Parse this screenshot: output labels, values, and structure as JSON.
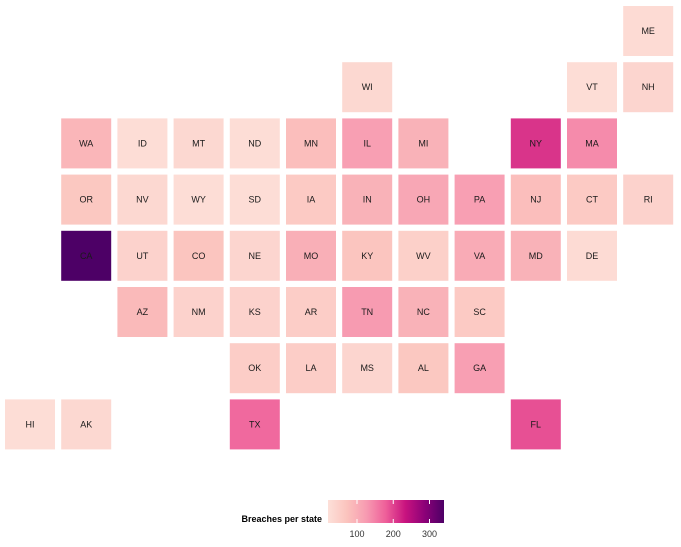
{
  "chart_data": {
    "type": "heatmap",
    "subtype": "state-tile-grid-map",
    "legend": {
      "title": "Breaches per state",
      "ticks": [
        100,
        200,
        300
      ],
      "range": [
        20,
        340
      ],
      "placement": "bottom",
      "colors": [
        "#fde0d9",
        "#fbc3bd",
        "#f79ab1",
        "#ee5e99",
        "#c8137f",
        "#8c0178",
        "#4d0066"
      ]
    },
    "tiles": [
      {
        "state": "ME",
        "value": 30
      },
      {
        "state": "WI",
        "value": 35
      },
      {
        "state": "VT",
        "value": 25
      },
      {
        "state": "NH",
        "value": 40
      },
      {
        "state": "WA",
        "value": 90
      },
      {
        "state": "ID",
        "value": 25
      },
      {
        "state": "MT",
        "value": 35
      },
      {
        "state": "ND",
        "value": 25
      },
      {
        "state": "MN",
        "value": 80
      },
      {
        "state": "IL",
        "value": 120
      },
      {
        "state": "MI",
        "value": 95
      },
      {
        "state": "NY",
        "value": 210
      },
      {
        "state": "MA",
        "value": 140
      },
      {
        "state": "OR",
        "value": 65
      },
      {
        "state": "NV",
        "value": 35
      },
      {
        "state": "WY",
        "value": 25
      },
      {
        "state": "SD",
        "value": 25
      },
      {
        "state": "IA",
        "value": 60
      },
      {
        "state": "IN",
        "value": 95
      },
      {
        "state": "OH",
        "value": 110
      },
      {
        "state": "PA",
        "value": 120
      },
      {
        "state": "NJ",
        "value": 80
      },
      {
        "state": "CT",
        "value": 60
      },
      {
        "state": "RI",
        "value": 45
      },
      {
        "state": "CA",
        "value": 340
      },
      {
        "state": "UT",
        "value": 45
      },
      {
        "state": "CO",
        "value": 70
      },
      {
        "state": "NE",
        "value": 40
      },
      {
        "state": "MO",
        "value": 100
      },
      {
        "state": "KY",
        "value": 70
      },
      {
        "state": "WV",
        "value": 50
      },
      {
        "state": "VA",
        "value": 105
      },
      {
        "state": "MD",
        "value": 95
      },
      {
        "state": "DE",
        "value": 30
      },
      {
        "state": "AZ",
        "value": 85
      },
      {
        "state": "NM",
        "value": 45
      },
      {
        "state": "KS",
        "value": 45
      },
      {
        "state": "AR",
        "value": 55
      },
      {
        "state": "TN",
        "value": 125
      },
      {
        "state": "NC",
        "value": 95
      },
      {
        "state": "SC",
        "value": 60
      },
      {
        "state": "OK",
        "value": 55
      },
      {
        "state": "LA",
        "value": 55
      },
      {
        "state": "MS",
        "value": 40
      },
      {
        "state": "AL",
        "value": 65
      },
      {
        "state": "GA",
        "value": 120
      },
      {
        "state": "HI",
        "value": 25
      },
      {
        "state": "AK",
        "value": 35
      },
      {
        "state": "TX",
        "value": 170
      },
      {
        "state": "FL",
        "value": 190
      }
    ]
  }
}
